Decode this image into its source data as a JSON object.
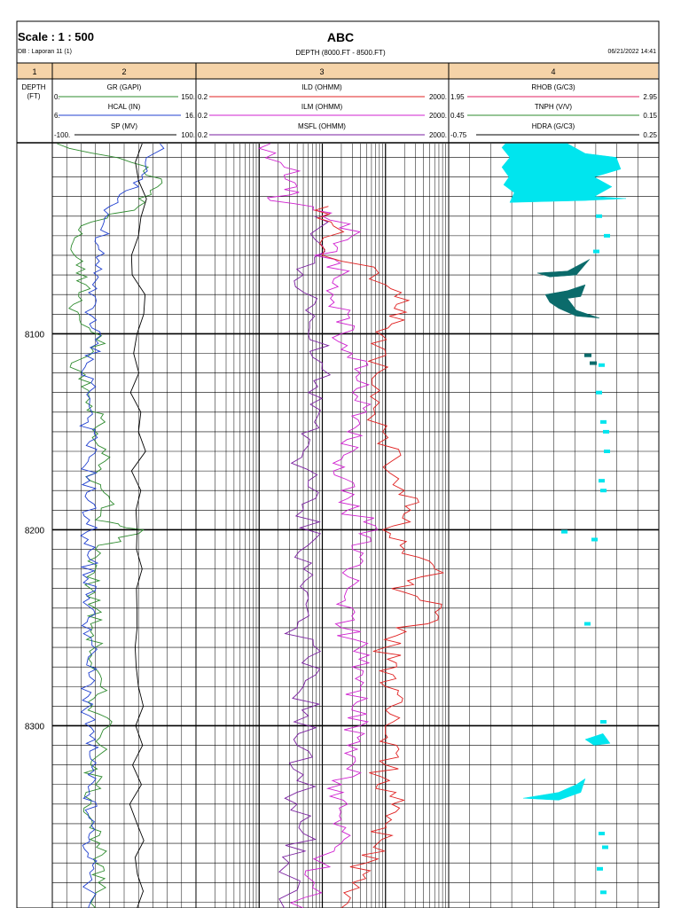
{
  "header": {
    "scale": "Scale : 1 : 500",
    "db": "DB : Laporan 11 (1)",
    "title": "ABC",
    "subtitle": "DEPTH (8000.FT - 8500.FT)",
    "date": "06/21/2022 14:41"
  },
  "tracks": [
    {
      "number": "1",
      "curves": [],
      "depth_label": "DEPTH",
      "depth_unit": "(FT)"
    },
    {
      "number": "2",
      "curves": [
        {
          "name": "GR (GAPI)",
          "min": "0.",
          "max": "150.",
          "color": "#2e8b2e"
        },
        {
          "name": "HCAL (IN)",
          "min": "6.",
          "max": "16.",
          "color": "#2040d0"
        },
        {
          "name": "SP (MV)",
          "min": "-100.",
          "max": "100.",
          "color": "#000000"
        }
      ]
    },
    {
      "number": "3",
      "curves": [
        {
          "name": "ILD (OHMM)",
          "min": "0.2",
          "max": "2000.",
          "color": "#e02020"
        },
        {
          "name": "ILM (OHMM)",
          "min": "0.2",
          "max": "2000.",
          "color": "#d020d0"
        },
        {
          "name": "MSFL (OHMM)",
          "min": "0.2",
          "max": "2000.",
          "color": "#7a1fa0"
        }
      ]
    },
    {
      "number": "4",
      "curves": [
        {
          "name": "RHOB (G/C3)",
          "min": "1.95",
          "max": "2.95",
          "color": "#e02060"
        },
        {
          "name": "TNPH (V/V)",
          "min": "0.45",
          "max": "0.15",
          "color": "#2e8b2e"
        },
        {
          "name": "HDRA (G/C3)",
          "min": "-0.75",
          "max": "0.25",
          "color": "#000000"
        }
      ]
    }
  ],
  "colors": {
    "fill_cyan": "#00e5ee",
    "fill_teal": "#0b6b6b"
  },
  "chart_data": {
    "type": "line",
    "title": "ABC",
    "depth_range_ft": [
      8000,
      8500
    ],
    "visible_depth_range_ft": [
      8003,
      8393
    ],
    "depth_labels": [
      "8100",
      "8200",
      "8300"
    ],
    "tracks": {
      "track2": {
        "scale": "linear",
        "series": [
          {
            "name": "GR (GAPI)",
            "xlim": [
              0,
              150
            ],
            "color": "#2e8b2e",
            "points": [
              [
                8003,
                5
              ],
              [
                8015,
                100
              ],
              [
                8025,
                110
              ],
              [
                8035,
                90
              ],
              [
                8045,
                30
              ],
              [
                8055,
                20
              ],
              [
                8065,
                25
              ],
              [
                8075,
                35
              ],
              [
                8085,
                22
              ],
              [
                8095,
                30
              ],
              [
                8105,
                55
              ],
              [
                8115,
                20
              ],
              [
                8125,
                40
              ],
              [
                8135,
                35
              ],
              [
                8145,
                55
              ],
              [
                8155,
                45
              ],
              [
                8165,
                55
              ],
              [
                8175,
                40
              ],
              [
                8185,
                60
              ],
              [
                8195,
                45
              ],
              [
                8200,
                95
              ],
              [
                8210,
                45
              ],
              [
                8220,
                45
              ],
              [
                8230,
                40
              ],
              [
                8240,
                45
              ],
              [
                8250,
                42
              ],
              [
                8260,
                45
              ],
              [
                8270,
                40
              ],
              [
                8280,
                50
              ],
              [
                8290,
                42
              ],
              [
                8300,
                60
              ],
              [
                8310,
                50
              ],
              [
                8320,
                40
              ],
              [
                8330,
                45
              ],
              [
                8340,
                40
              ],
              [
                8350,
                42
              ],
              [
                8360,
                50
              ],
              [
                8370,
                45
              ],
              [
                8380,
                48
              ],
              [
                8393,
                45
              ]
            ]
          },
          {
            "name": "HCAL (IN)",
            "xlim": [
              6,
              16
            ],
            "color": "#2040d0",
            "points": [
              [
                8003,
                13.5
              ],
              [
                8015,
                12.5
              ],
              [
                8025,
                12.0
              ],
              [
                8035,
                10.0
              ],
              [
                8045,
                9.5
              ],
              [
                8055,
                9.2
              ],
              [
                8065,
                9.0
              ],
              [
                8075,
                8.8
              ],
              [
                8085,
                9.0
              ],
              [
                8095,
                8.6
              ],
              [
                8105,
                9.2
              ],
              [
                8115,
                8.4
              ],
              [
                8125,
                8.7
              ],
              [
                8135,
                8.6
              ],
              [
                8145,
                8.5
              ],
              [
                8155,
                8.6
              ],
              [
                8165,
                8.5
              ],
              [
                8175,
                8.6
              ],
              [
                8185,
                8.5
              ],
              [
                8195,
                8.6
              ],
              [
                8205,
                8.5
              ],
              [
                8215,
                8.6
              ],
              [
                8225,
                8.5
              ],
              [
                8235,
                8.6
              ],
              [
                8245,
                8.5
              ],
              [
                8255,
                8.7
              ],
              [
                8265,
                8.5
              ],
              [
                8275,
                8.6
              ],
              [
                8285,
                8.5
              ],
              [
                8295,
                8.6
              ],
              [
                8305,
                8.6
              ],
              [
                8315,
                8.6
              ],
              [
                8325,
                8.5
              ],
              [
                8335,
                8.6
              ],
              [
                8345,
                8.5
              ],
              [
                8355,
                8.6
              ],
              [
                8365,
                8.5
              ],
              [
                8375,
                8.6
              ],
              [
                8393,
                8.5
              ]
            ]
          },
          {
            "name": "SP (MV)",
            "xlim": [
              -100,
              100
            ],
            "color": "#000000",
            "points": [
              [
                8003,
                25
              ],
              [
                8050,
                20
              ],
              [
                8100,
                18
              ],
              [
                8150,
                20
              ],
              [
                8200,
                18
              ],
              [
                8250,
                18
              ],
              [
                8300,
                16
              ],
              [
                8350,
                18
              ],
              [
                8393,
                18
              ]
            ]
          }
        ]
      },
      "track3": {
        "scale": "log",
        "series": [
          {
            "name": "ILD (OHMM)",
            "xlim": [
              0.2,
              2000
            ],
            "color": "#e02020",
            "points": [
              [
                8035,
                25
              ],
              [
                8045,
                30
              ],
              [
                8060,
                20
              ],
              [
                8075,
                200
              ],
              [
                8085,
                300
              ],
              [
                8095,
                250
              ],
              [
                8105,
                120
              ],
              [
                8120,
                150
              ],
              [
                8135,
                160
              ],
              [
                8150,
                180
              ],
              [
                8165,
                250
              ],
              [
                8180,
                400
              ],
              [
                8190,
                500
              ],
              [
                8200,
                180
              ],
              [
                8210,
                400
              ],
              [
                8220,
                1200
              ],
              [
                8230,
                250
              ],
              [
                8240,
                1500
              ],
              [
                8250,
                300
              ],
              [
                8260,
                200
              ],
              [
                8270,
                300
              ],
              [
                8280,
                200
              ],
              [
                8290,
                250
              ],
              [
                8300,
                200
              ],
              [
                8310,
                300
              ],
              [
                8320,
                200
              ],
              [
                8330,
                150
              ],
              [
                8340,
                250
              ],
              [
                8350,
                200
              ],
              [
                8360,
                150
              ],
              [
                8370,
                100
              ],
              [
                8380,
                60
              ],
              [
                8393,
                40
              ]
            ]
          },
          {
            "name": "ILM (OHMM)",
            "xlim": [
              0.2,
              2000
            ],
            "color": "#d020d0",
            "points": [
              [
                8003,
                3
              ],
              [
                8015,
                5
              ],
              [
                8025,
                8
              ],
              [
                8032,
                3
              ],
              [
                8040,
                20
              ],
              [
                8050,
                60
              ],
              [
                8060,
                15
              ],
              [
                8070,
                40
              ],
              [
                8080,
                30
              ],
              [
                8090,
                50
              ],
              [
                8100,
                40
              ],
              [
                8110,
                60
              ],
              [
                8120,
                80
              ],
              [
                8130,
                60
              ],
              [
                8140,
                100
              ],
              [
                8150,
                50
              ],
              [
                8160,
                60
              ],
              [
                8170,
                30
              ],
              [
                8180,
                40
              ],
              [
                8190,
                50
              ],
              [
                8200,
                150
              ],
              [
                8210,
                60
              ],
              [
                8220,
                50
              ],
              [
                8230,
                50
              ],
              [
                8240,
                60
              ],
              [
                8250,
                40
              ],
              [
                8260,
                80
              ],
              [
                8270,
                60
              ],
              [
                8280,
                80
              ],
              [
                8290,
                60
              ],
              [
                8300,
                80
              ],
              [
                8310,
                50
              ],
              [
                8320,
                60
              ],
              [
                8330,
                40
              ],
              [
                8340,
                50
              ],
              [
                8350,
                30
              ],
              [
                8360,
                40
              ],
              [
                8370,
                20
              ],
              [
                8380,
                15
              ],
              [
                8393,
                10
              ]
            ]
          },
          {
            "name": "MSFL (OHMM)",
            "xlim": [
              0.2,
              2000
            ],
            "color": "#7a1fa0",
            "points": [
              [
                8040,
                15
              ],
              [
                8055,
                20
              ],
              [
                8070,
                10
              ],
              [
                8085,
                15
              ],
              [
                8100,
                12
              ],
              [
                8115,
                20
              ],
              [
                8130,
                12
              ],
              [
                8145,
                15
              ],
              [
                8160,
                10
              ],
              [
                8175,
                12
              ],
              [
                8190,
                10
              ],
              [
                8205,
                15
              ],
              [
                8220,
                10
              ],
              [
                8235,
                12
              ],
              [
                8250,
                8
              ],
              [
                8265,
                12
              ],
              [
                8280,
                10
              ],
              [
                8295,
                12
              ],
              [
                8310,
                8
              ],
              [
                8325,
                10
              ],
              [
                8340,
                8
              ],
              [
                8355,
                10
              ],
              [
                8370,
                6
              ],
              [
                8393,
                5
              ]
            ]
          }
        ]
      },
      "track4": {
        "scale": "linear",
        "series": [
          {
            "name": "RHOB (G/C3)",
            "xlim": [
              1.95,
              2.95
            ],
            "color": "#e02060",
            "points": []
          },
          {
            "name": "TNPH (V/V)",
            "xlim": [
              0.45,
              0.15
            ],
            "color": "#2e8b2e",
            "points": []
          },
          {
            "name": "HDRA (G/C3)",
            "xlim": [
              -0.75,
              0.25
            ],
            "color": "#000000",
            "points": []
          }
        ]
      }
    }
  }
}
